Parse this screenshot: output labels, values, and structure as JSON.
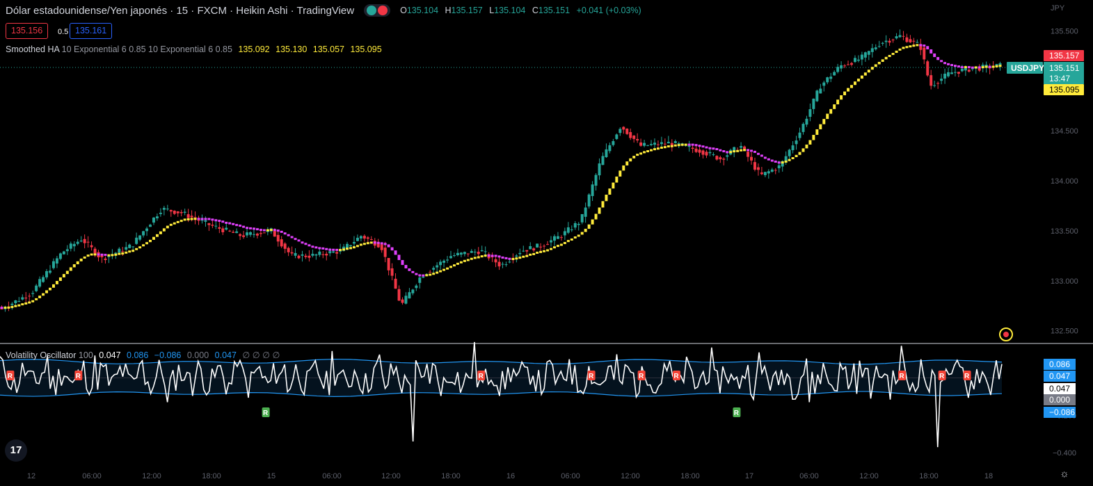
{
  "header": {
    "symbol_title": "Dólar estadounidense/Yen japonés · 15 · FXCM · Heikin Ashi · TradingView",
    "ohlc": [
      {
        "k": "O",
        "v": "135.104"
      },
      {
        "k": "H",
        "v": "135.157"
      },
      {
        "k": "L",
        "v": "135.104"
      },
      {
        "k": "C",
        "v": "135.151"
      }
    ],
    "change": "+0.041 (+0.03%)",
    "sell_price": "135.156",
    "spread": "0.5",
    "buy_price": "135.161",
    "currency": "JPY"
  },
  "indicator": {
    "name": "Smoothed HA",
    "params": "10 Exponential 6 0.85 10 Exponential 6 0.85",
    "values": [
      "135.092",
      "135.130",
      "135.057",
      "135.095"
    ]
  },
  "oscillator_legend": {
    "name": "Volatility Oscillator",
    "param": "100",
    "v1": "0.047",
    "v2": "0.086",
    "v3": "−0.086",
    "v4": "0.000",
    "v5": "0.047",
    "empties": "∅ ∅ ∅ ∅"
  },
  "colors": {
    "bull": "#26a69a",
    "bear": "#f23645",
    "smooth_up": "#ffeb3b",
    "smooth_down": "#e040fb",
    "osc_line": "#ffffff",
    "band": "#2196f3"
  },
  "chart_data": [
    {
      "type": "candlestick",
      "title": "USDJPY",
      "y_ticks": [
        "135.500",
        "135.000",
        "134.500",
        "134.000",
        "133.500",
        "133.000",
        "132.500"
      ],
      "ylim": [
        132.4,
        135.6
      ],
      "x_ticks": [
        "12",
        "06:00",
        "12:00",
        "18:00",
        "15",
        "06:00",
        "12:00",
        "18:00",
        "16",
        "06:00",
        "12:00",
        "18:00",
        "17",
        "06:00",
        "12:00",
        "18:00",
        "18"
      ],
      "last_price_label": "USDJPY",
      "last_price": "135.151",
      "countdown": "13:47",
      "high_label": "135.157",
      "smooth_label": "135.095",
      "close_path": [
        [
          0,
          132.72
        ],
        [
          0.03,
          132.88
        ],
        [
          0.06,
          133.28
        ],
        [
          0.08,
          133.42
        ],
        [
          0.1,
          133.22
        ],
        [
          0.13,
          133.35
        ],
        [
          0.16,
          133.72
        ],
        [
          0.18,
          133.68
        ],
        [
          0.21,
          133.55
        ],
        [
          0.24,
          133.45
        ],
        [
          0.27,
          133.5
        ],
        [
          0.29,
          133.25
        ],
        [
          0.31,
          133.25
        ],
        [
          0.34,
          133.3
        ],
        [
          0.36,
          133.45
        ],
        [
          0.38,
          133.35
        ],
        [
          0.4,
          132.75
        ],
        [
          0.42,
          133.05
        ],
        [
          0.45,
          133.25
        ],
        [
          0.48,
          133.3
        ],
        [
          0.5,
          133.15
        ],
        [
          0.52,
          133.3
        ],
        [
          0.54,
          133.35
        ],
        [
          0.56,
          133.45
        ],
        [
          0.58,
          133.6
        ],
        [
          0.6,
          134.2
        ],
        [
          0.62,
          134.55
        ],
        [
          0.64,
          134.35
        ],
        [
          0.67,
          134.38
        ],
        [
          0.7,
          134.3
        ],
        [
          0.72,
          134.22
        ],
        [
          0.74,
          134.35
        ],
        [
          0.76,
          134.05
        ],
        [
          0.78,
          134.15
        ],
        [
          0.8,
          134.5
        ],
        [
          0.82,
          134.95
        ],
        [
          0.84,
          135.15
        ],
        [
          0.86,
          135.22
        ],
        [
          0.88,
          135.38
        ],
        [
          0.9,
          135.45
        ],
        [
          0.92,
          135.35
        ],
        [
          0.93,
          134.95
        ],
        [
          0.95,
          135.08
        ],
        [
          0.97,
          135.12
        ],
        [
          1,
          135.15
        ]
      ]
    },
    {
      "type": "line",
      "title": "Volatility Oscillator",
      "y_ticks": [
        "0.000",
        "−0.200",
        "−0.400"
      ],
      "ylim": [
        -0.47,
        0.18
      ],
      "band_upper": 0.086,
      "band_lower": -0.086,
      "axis_labels": [
        "0.086",
        "0.047",
        "0.047",
        "0.000",
        "−0.086"
      ],
      "r_markers": [
        {
          "x": 0.01,
          "type": "R",
          "dir": "down"
        },
        {
          "x": 0.078,
          "type": "R",
          "dir": "down"
        },
        {
          "x": 0.265,
          "type": "R",
          "dir": "up"
        },
        {
          "x": 0.48,
          "type": "R",
          "dir": "down"
        },
        {
          "x": 0.59,
          "type": "R",
          "dir": "down"
        },
        {
          "x": 0.64,
          "type": "R",
          "dir": "down"
        },
        {
          "x": 0.675,
          "type": "R",
          "dir": "down"
        },
        {
          "x": 0.735,
          "type": "R",
          "dir": "up"
        },
        {
          "x": 0.9,
          "type": "R",
          "dir": "down"
        },
        {
          "x": 0.94,
          "type": "R",
          "dir": "down"
        },
        {
          "x": 0.965,
          "type": "R",
          "dir": "down"
        }
      ]
    }
  ]
}
